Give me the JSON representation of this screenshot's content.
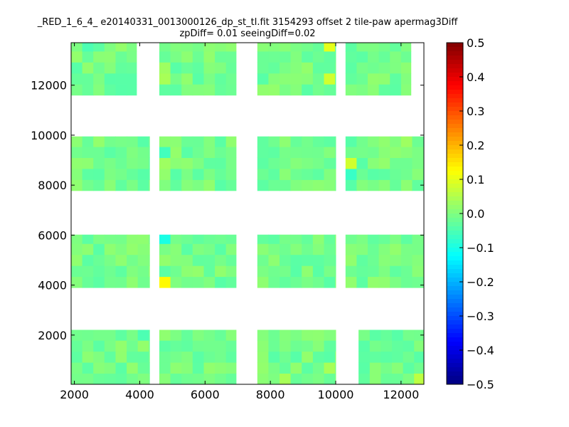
{
  "chart_data": {
    "type": "heatmap",
    "title": "_RED_1_6_4_ e20140331_0013000126_dp_st_tl.fit 3154293 offset 2 tile-paw apermag3Diff",
    "subtitle": "zpDiff= 0.01 seeingDiff=0.02",
    "xlabel": "",
    "ylabel": "",
    "xlim": [
      1900,
      12700
    ],
    "ylim": [
      30,
      13700
    ],
    "x_ticks": [
      2000,
      4000,
      6000,
      8000,
      10000,
      12000
    ],
    "y_ticks": [
      2000,
      4000,
      6000,
      8000,
      10000,
      12000
    ],
    "x_tick_labels": [
      "2000",
      "4000",
      "6000",
      "8000",
      "10000",
      "12000"
    ],
    "y_tick_labels": [
      "2000",
      "4000",
      "6000",
      "8000",
      "10000",
      "12000"
    ],
    "colorbar": {
      "colormap": "jet",
      "range": [
        -0.5,
        0.5
      ],
      "ticks": [
        0.5,
        0.4,
        0.3,
        0.2,
        0.1,
        0.0,
        -0.1,
        -0.2,
        -0.3,
        -0.4,
        -0.5
      ],
      "tick_labels": [
        "0.5",
        "0.4",
        "0.3",
        "0.2",
        "0.1",
        "0.0",
        "−0.1",
        "−0.2",
        "−0.3",
        "−0.4",
        "−0.5"
      ]
    },
    "cell_size": [
      340,
      440
    ],
    "detector_blocks": [
      {
        "x0": 1900,
        "x1": 4300,
        "y0": 30,
        "y1": 2210
      },
      {
        "x0": 4600,
        "x1": 6950,
        "y0": 30,
        "y1": 2210
      },
      {
        "x0": 7600,
        "x1": 10000,
        "y0": 30,
        "y1": 2210
      },
      {
        "x0": 10700,
        "x1": 12700,
        "y0": 30,
        "y1": 2210
      },
      {
        "x0": 1900,
        "x1": 4300,
        "y0": 3900,
        "y1": 6020
      },
      {
        "x0": 4600,
        "x1": 6950,
        "y0": 3900,
        "y1": 6020
      },
      {
        "x0": 7600,
        "x1": 10000,
        "y0": 3900,
        "y1": 6020
      },
      {
        "x0": 10300,
        "x1": 12700,
        "y0": 3900,
        "y1": 6020
      },
      {
        "x0": 1900,
        "x1": 4300,
        "y0": 7780,
        "y1": 9950
      },
      {
        "x0": 4600,
        "x1": 6950,
        "y0": 7780,
        "y1": 9950
      },
      {
        "x0": 7600,
        "x1": 10000,
        "y0": 7780,
        "y1": 9950
      },
      {
        "x0": 10300,
        "x1": 12700,
        "y0": 7780,
        "y1": 9950
      },
      {
        "x0": 1900,
        "x1": 3900,
        "y0": 11600,
        "y1": 13700
      },
      {
        "x0": 4600,
        "x1": 6950,
        "y0": 11600,
        "y1": 13700
      },
      {
        "x0": 7600,
        "x1": 10000,
        "y0": 11600,
        "y1": 13700
      },
      {
        "x0": 10300,
        "x1": 12300,
        "y0": 11600,
        "y1": 13700
      }
    ],
    "base_value": -0.01,
    "notable_cells": [
      {
        "x": 4800,
        "y": 4200,
        "value": 0.13
      },
      {
        "x": 4800,
        "y": 5800,
        "value": -0.1
      },
      {
        "x": 9200,
        "y": 10000,
        "value": 0.13
      },
      {
        "x": 10800,
        "y": 10000,
        "value": 0.07
      },
      {
        "x": 11600,
        "y": 10000,
        "value": 0.05
      },
      {
        "x": 12100,
        "y": 10000,
        "value": 0.05
      },
      {
        "x": 6200,
        "y": 10000,
        "value": 0.04
      },
      {
        "x": 6600,
        "y": 10000,
        "value": 0.04
      },
      {
        "x": 8400,
        "y": 10000,
        "value": 0.05
      },
      {
        "x": 3400,
        "y": 10000,
        "value": -0.08
      },
      {
        "x": 3100,
        "y": 10000,
        "value": -0.04
      },
      {
        "x": 7800,
        "y": 10000,
        "value": -0.07
      },
      {
        "x": 9600,
        "y": 10000,
        "value": -0.05
      },
      {
        "x": 9900,
        "y": 10000,
        "value": -0.04
      },
      {
        "x": 4800,
        "y": 9500,
        "value": -0.06
      },
      {
        "x": 10500,
        "y": 8900,
        "value": 0.08
      },
      {
        "x": 10500,
        "y": 8500,
        "value": -0.07
      },
      {
        "x": 10500,
        "y": 9600,
        "value": -0.04
      },
      {
        "x": 4800,
        "y": 8700,
        "value": 0.03
      },
      {
        "x": 9900,
        "y": 13600,
        "value": 0.1
      },
      {
        "x": 9900,
        "y": 12200,
        "value": 0.08
      },
      {
        "x": 2400,
        "y": 13600,
        "value": -0.05
      },
      {
        "x": 4800,
        "y": 12400,
        "value": 0.04
      },
      {
        "x": 4800,
        "y": 12700,
        "value": 0.03
      },
      {
        "x": 4200,
        "y": 2000,
        "value": -0.05
      },
      {
        "x": 12500,
        "y": 200,
        "value": 0.06
      },
      {
        "x": 8600,
        "y": 200,
        "value": 0.04
      },
      {
        "x": 9800,
        "y": 500,
        "value": 0.04
      },
      {
        "x": 12000,
        "y": 9700,
        "value": 0.03
      },
      {
        "x": 5700,
        "y": 5200,
        "value": -0.03
      }
    ],
    "grid": false,
    "legend": "colorbar-right"
  }
}
